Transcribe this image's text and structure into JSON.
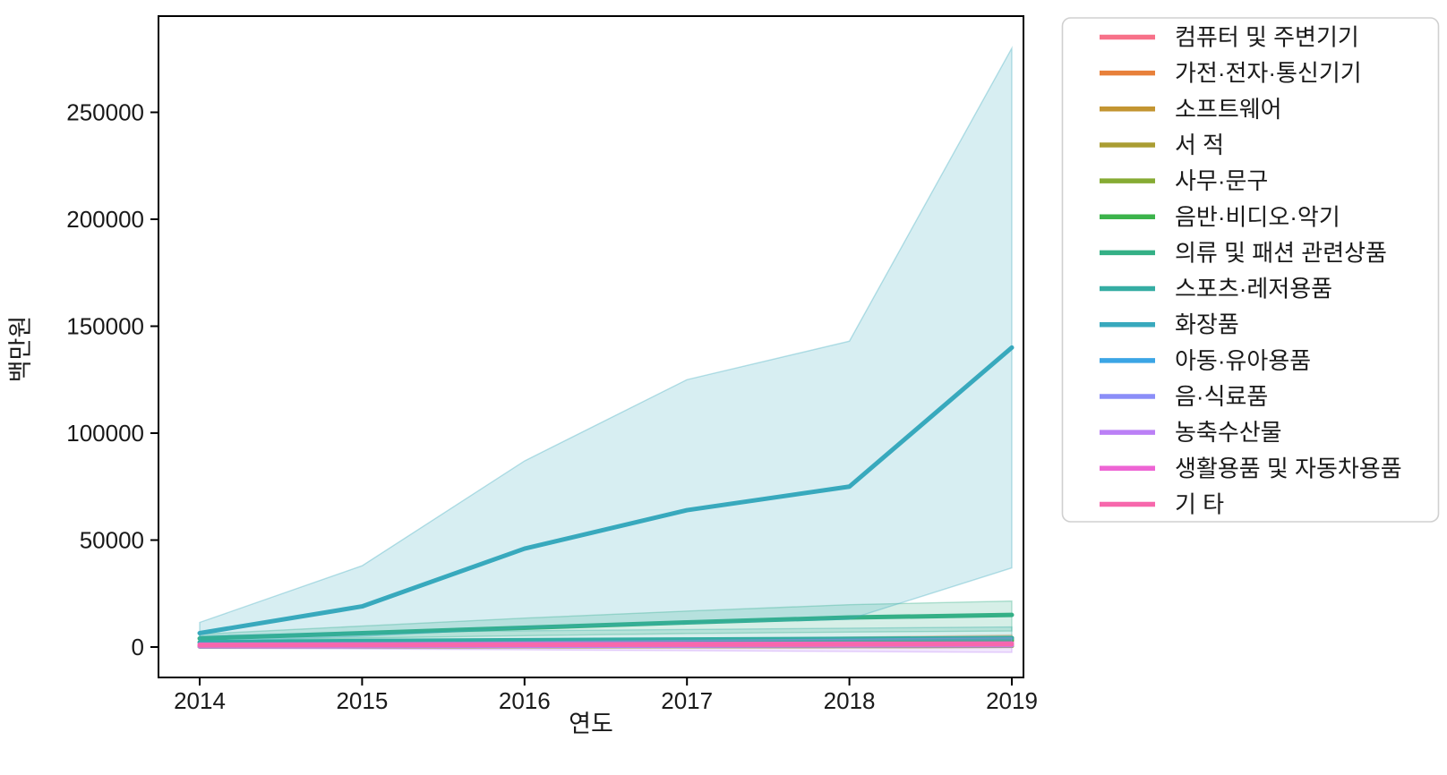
{
  "figure": {
    "background": "#ffffff"
  },
  "chart_data": {
    "type": "line",
    "title": "",
    "xlabel": "연도",
    "ylabel": "백만원",
    "x": [
      2014,
      2015,
      2016,
      2017,
      2018,
      2019
    ],
    "xticks": [
      "2014",
      "2015",
      "2016",
      "2017",
      "2018",
      "2019"
    ],
    "yticks": [
      0,
      50000,
      100000,
      150000,
      200000,
      250000
    ],
    "ylim": [
      -14200,
      295000
    ],
    "xlim": [
      2013.75,
      2019.07
    ],
    "grid": false,
    "legend_position": "outside-right",
    "band_alpha": 0.2,
    "series": [
      {
        "name": "컴퓨터 및 주변기기",
        "color": "#f77189",
        "values": [
          600,
          900,
          1300,
          1700,
          2200,
          2600
        ]
      },
      {
        "name": "가전·전자·통신기기",
        "color": "#e8803a",
        "values": [
          700,
          1200,
          1800,
          2400,
          3200,
          4200
        ],
        "band_lower": [
          300,
          600,
          900,
          1300,
          1800,
          2500
        ],
        "band_upper": [
          1100,
          1800,
          2700,
          3500,
          4600,
          5600
        ]
      },
      {
        "name": "소프트웨어",
        "color": "#c39532",
        "values": [
          250,
          300,
          350,
          400,
          450,
          550
        ]
      },
      {
        "name": "서 적",
        "color": "#aa9d32",
        "values": [
          450,
          500,
          550,
          600,
          650,
          750
        ]
      },
      {
        "name": "사무·문구",
        "color": "#86ab33",
        "values": [
          350,
          400,
          450,
          500,
          550,
          650
        ]
      },
      {
        "name": "음반·비디오·악기",
        "color": "#3cb34b",
        "values": [
          300,
          700,
          1200,
          1800,
          2500,
          3300
        ]
      },
      {
        "name": "의류 및 패션 관련상품",
        "color": "#34b086",
        "values": [
          4000,
          6500,
          9000,
          11500,
          13800,
          15000
        ],
        "band_lower": [
          2500,
          4200,
          5300,
          6300,
          7000,
          7500
        ],
        "band_upper": [
          6000,
          9800,
          13500,
          16800,
          19800,
          21500
        ]
      },
      {
        "name": "스포츠·레저용품",
        "color": "#35ada3",
        "values": [
          2200,
          2800,
          3200,
          3500,
          3800,
          4200
        ],
        "band_lower": [
          700,
          900,
          1100,
          1200,
          1300,
          1500
        ],
        "band_upper": [
          5200,
          6800,
          7600,
          8200,
          8800,
          9400
        ]
      },
      {
        "name": "화장품",
        "color": "#38a9bd",
        "values": [
          6500,
          19000,
          46000,
          64000,
          75000,
          140000
        ],
        "band_lower": [
          2500,
          5000,
          9000,
          11000,
          13000,
          37000
        ],
        "band_upper": [
          11500,
          38000,
          87000,
          125000,
          143000,
          280000
        ]
      },
      {
        "name": "아동·유아용품",
        "color": "#3ba5e5",
        "values": [
          900,
          1000,
          1100,
          1200,
          1300,
          1400
        ]
      },
      {
        "name": "음·식료품",
        "color": "#8b8ef8",
        "values": [
          500,
          600,
          700,
          800,
          900,
          1000
        ]
      },
      {
        "name": "농축수산물",
        "color": "#bb80f6",
        "values": [
          400,
          500,
          600,
          700,
          800,
          900
        ],
        "band_lower": [
          -600,
          -900,
          -1300,
          -1700,
          -2100,
          -2500
        ],
        "band_upper": [
          1400,
          1900,
          2500,
          3100,
          3700,
          4300
        ]
      },
      {
        "name": "생활용품 및 자동차용품",
        "color": "#ee64d4",
        "values": [
          1100,
          1200,
          1300,
          1400,
          1500,
          1600
        ]
      },
      {
        "name": "기 타",
        "color": "#f768ac",
        "values": [
          800,
          900,
          1000,
          1100,
          1200,
          1300
        ]
      }
    ]
  }
}
